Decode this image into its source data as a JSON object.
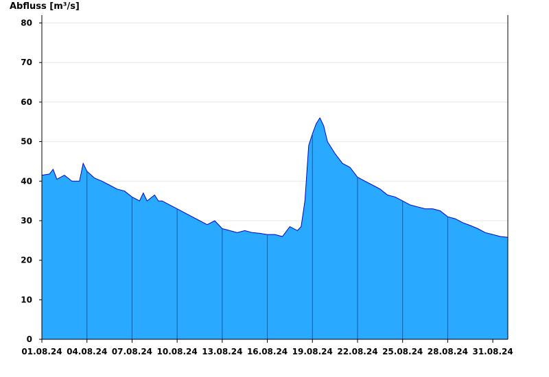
{
  "chart_data": {
    "type": "area",
    "ylabel": "Abfluss [m³/s]",
    "xlabel": "",
    "title": "",
    "ylim": [
      0,
      82
    ],
    "yticks": [
      0,
      10,
      20,
      30,
      40,
      50,
      60,
      70,
      80
    ],
    "xlim": [
      "2024-08-01T00:00",
      "2024-08-31T24:00"
    ],
    "xtick_labels": [
      "01.08.24",
      "04.08.24",
      "07.08.24",
      "10.08.24",
      "13.08.24",
      "16.08.24",
      "19.08.24",
      "22.08.24",
      "25.08.24",
      "28.08.24",
      "31.08.24"
    ],
    "grid": true,
    "fill_color": "#29a9ff",
    "line_color": "#0000cc",
    "series": [
      {
        "x": [
          "2024-08-01T00:00",
          "2024-08-01T12:00",
          "2024-08-01T18:00",
          "2024-08-02T00:00",
          "2024-08-02T12:00",
          "2024-08-03T00:00",
          "2024-08-03T12:00",
          "2024-08-03T18:00",
          "2024-08-04T00:00",
          "2024-08-04T12:00",
          "2024-08-05T00:00",
          "2024-08-05T12:00",
          "2024-08-06T00:00",
          "2024-08-06T12:00",
          "2024-08-07T00:00",
          "2024-08-07T12:00",
          "2024-08-07T18:00",
          "2024-08-08T00:00",
          "2024-08-08T12:00",
          "2024-08-08T18:00",
          "2024-08-09T00:00",
          "2024-08-09T12:00",
          "2024-08-10T00:00",
          "2024-08-10T12:00",
          "2024-08-11T00:00",
          "2024-08-11T12:00",
          "2024-08-12T00:00",
          "2024-08-12T12:00",
          "2024-08-13T00:00",
          "2024-08-13T12:00",
          "2024-08-14T00:00",
          "2024-08-14T12:00",
          "2024-08-15T00:00",
          "2024-08-15T12:00",
          "2024-08-16T00:00",
          "2024-08-16T12:00",
          "2024-08-17T00:00",
          "2024-08-17T12:00",
          "2024-08-18T00:00",
          "2024-08-18T06:00",
          "2024-08-18T12:00",
          "2024-08-18T18:00",
          "2024-08-19T00:00",
          "2024-08-19T06:00",
          "2024-08-19T12:00",
          "2024-08-19T18:00",
          "2024-08-20T00:00",
          "2024-08-20T12:00",
          "2024-08-21T00:00",
          "2024-08-21T12:00",
          "2024-08-22T00:00",
          "2024-08-22T12:00",
          "2024-08-23T00:00",
          "2024-08-23T12:00",
          "2024-08-24T00:00",
          "2024-08-24T12:00",
          "2024-08-25T00:00",
          "2024-08-25T12:00",
          "2024-08-26T00:00",
          "2024-08-26T12:00",
          "2024-08-27T00:00",
          "2024-08-27T12:00",
          "2024-08-28T00:00",
          "2024-08-28T12:00",
          "2024-08-29T00:00",
          "2024-08-29T12:00",
          "2024-08-30T00:00",
          "2024-08-30T12:00",
          "2024-08-31T00:00",
          "2024-08-31T12:00",
          "2024-08-31T24:00"
        ],
        "y": [
          41.5,
          41.8,
          43.0,
          40.5,
          41.5,
          40.0,
          40.0,
          44.5,
          42.5,
          40.8,
          40.0,
          39.0,
          38.0,
          37.5,
          36.0,
          35.0,
          37.0,
          35.0,
          36.5,
          35.0,
          35.0,
          34.0,
          33.0,
          32.0,
          31.0,
          30.0,
          29.0,
          30.0,
          28.0,
          27.5,
          27.0,
          27.5,
          27.0,
          26.8,
          26.5,
          26.5,
          26.0,
          28.5,
          27.5,
          28.5,
          35.0,
          49.0,
          52.0,
          54.5,
          56.0,
          54.0,
          50.0,
          47.0,
          44.5,
          43.5,
          41.0,
          40.0,
          39.0,
          38.0,
          36.5,
          36.0,
          35.0,
          34.0,
          33.5,
          33.0,
          33.0,
          32.5,
          31.0,
          30.5,
          29.5,
          28.8,
          28.0,
          27.0,
          26.5,
          26.0,
          25.8
        ]
      }
    ]
  }
}
